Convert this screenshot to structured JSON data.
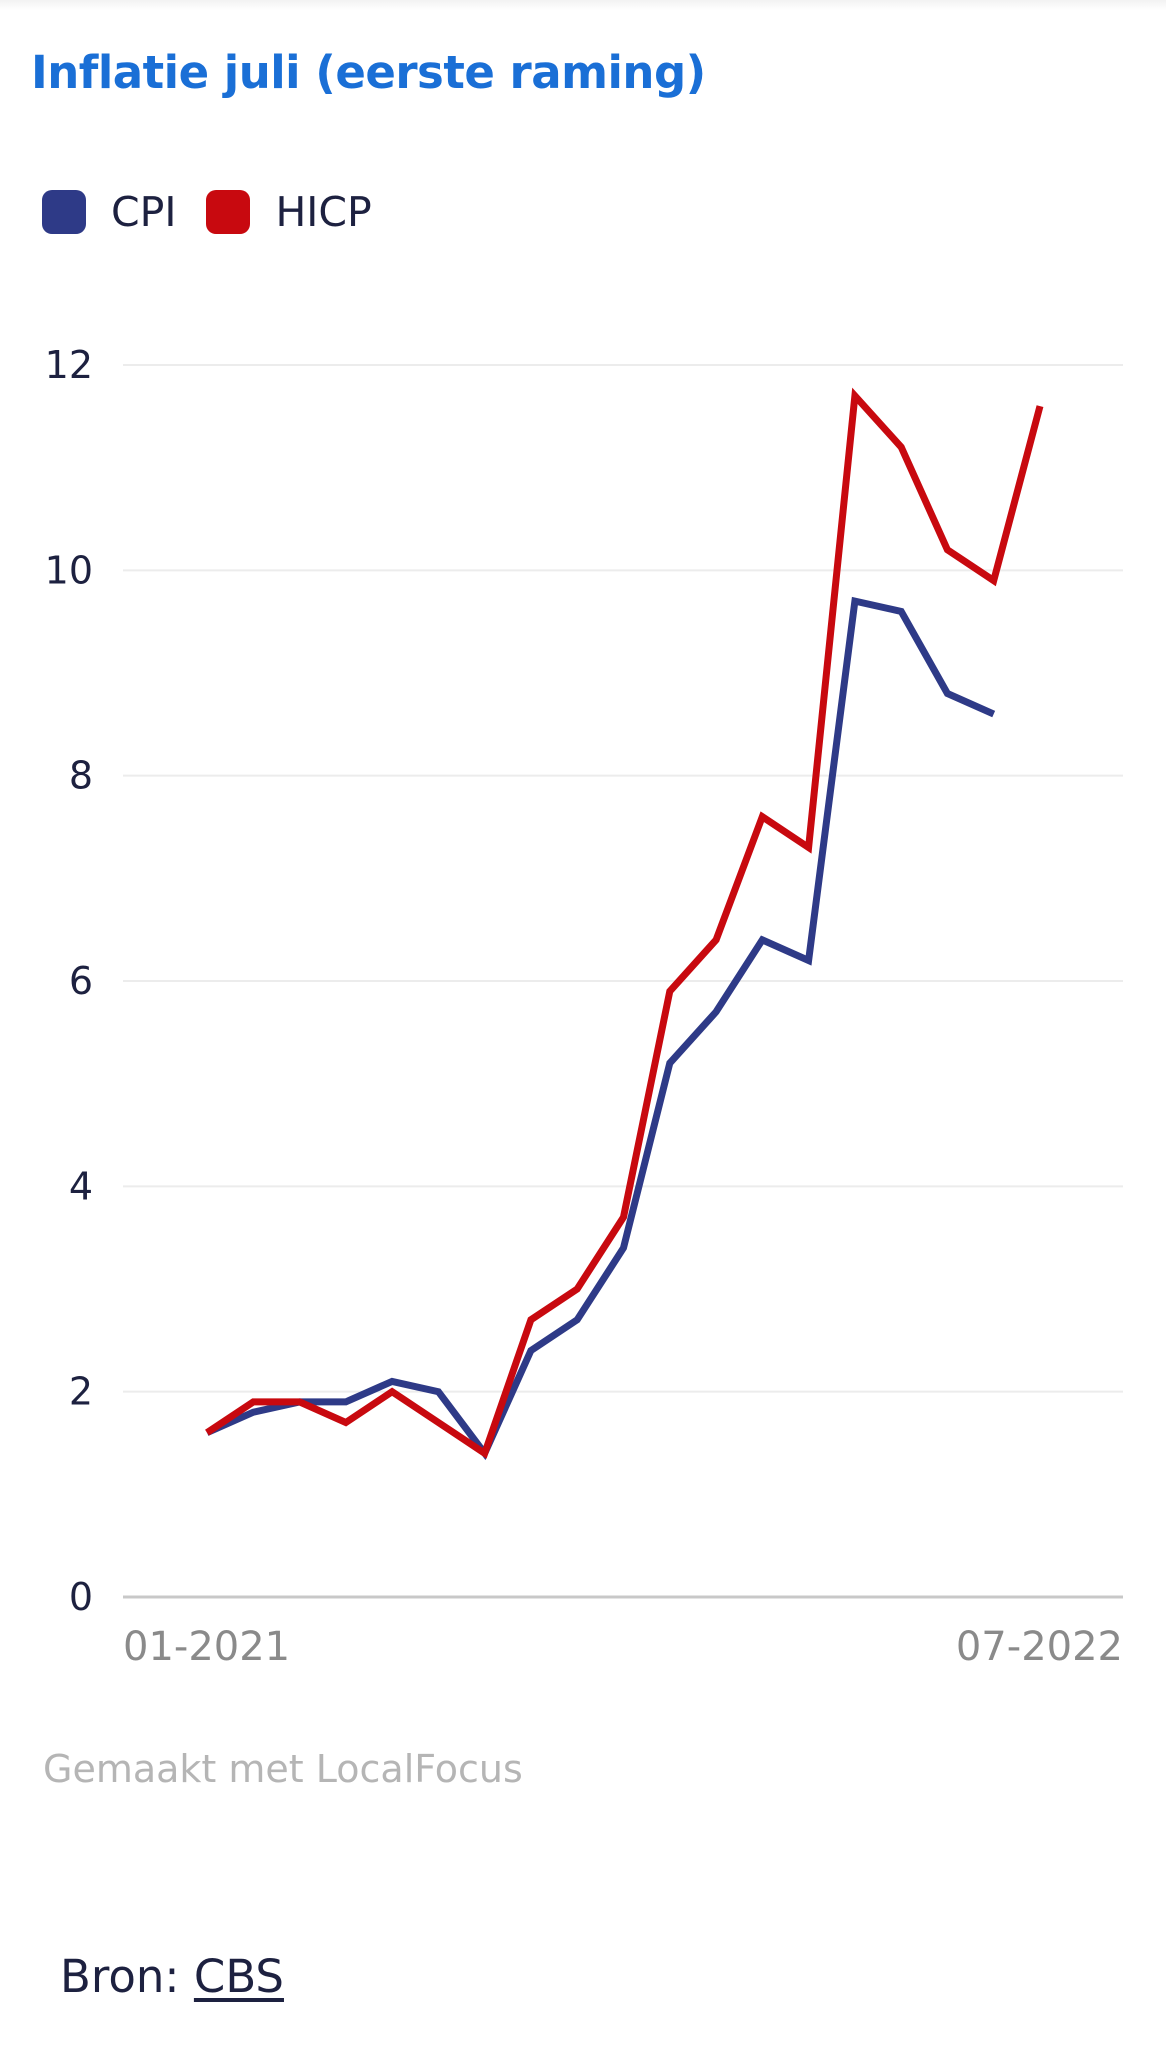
{
  "title": "Inflatie juli (eerste raming)",
  "legend": {
    "items": [
      {
        "label": "CPI",
        "color": "#2e3a87"
      },
      {
        "label": "HICP",
        "color": "#c8090f"
      }
    ]
  },
  "chart_data": {
    "type": "line",
    "x": [
      "01-2021",
      "02-2021",
      "03-2021",
      "04-2021",
      "05-2021",
      "06-2021",
      "07-2021",
      "08-2021",
      "09-2021",
      "10-2021",
      "11-2021",
      "12-2021",
      "01-2022",
      "02-2022",
      "03-2022",
      "04-2022",
      "05-2022",
      "06-2022",
      "07-2022"
    ],
    "x_tick_labels": [
      "01-2021",
      "07-2022"
    ],
    "y_ticks": [
      "0",
      "2",
      "4",
      "6",
      "8",
      "10",
      "12"
    ],
    "ylim": [
      0,
      12
    ],
    "grid": true,
    "legend_position": "top-left",
    "series": [
      {
        "name": "CPI",
        "color": "#2e3a87",
        "values": [
          1.6,
          1.8,
          1.9,
          1.9,
          2.1,
          2.0,
          1.4,
          2.4,
          2.7,
          3.4,
          5.2,
          5.7,
          6.4,
          6.2,
          9.7,
          9.6,
          8.8,
          8.6,
          null
        ]
      },
      {
        "name": "HICP",
        "color": "#c8090f",
        "values": [
          1.6,
          1.9,
          1.9,
          1.7,
          2.0,
          1.7,
          1.4,
          2.7,
          3.0,
          3.7,
          5.9,
          6.4,
          7.6,
          7.3,
          11.7,
          11.2,
          10.2,
          9.9,
          11.6
        ]
      }
    ]
  },
  "footer": {
    "made_with": "Gemaakt met LocalFocus",
    "source_prefix": "Bron: ",
    "source_link": "CBS"
  }
}
